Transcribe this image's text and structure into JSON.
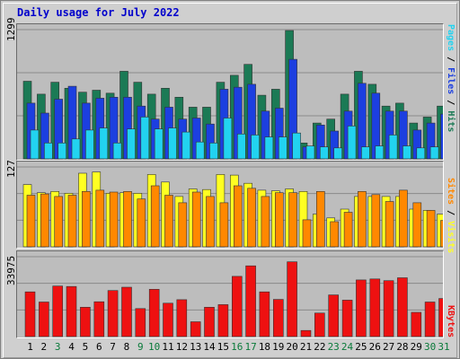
{
  "title": "Daily usage for July 2022",
  "colors": {
    "hits": "#1b7a55",
    "files": "#1c3fe0",
    "pages": "#22d3f0",
    "visits": "#ffff22",
    "sites": "#ff8800",
    "kbytes": "#ee1111",
    "weekend_label": "#0a7a3a",
    "weekday_label": "#000000"
  },
  "chart_data": [
    {
      "type": "bar",
      "panel": "requests",
      "ymax_label": "1299",
      "ylim": [
        0,
        1299
      ],
      "legend": [
        {
          "key": "pages",
          "text": "Pages"
        },
        {
          "key": "files",
          "text": "Files"
        },
        {
          "key": "hits",
          "text": "Hits"
        }
      ],
      "categories": [
        "1",
        "2",
        "3",
        "4",
        "5",
        "6",
        "7",
        "8",
        "9",
        "10",
        "11",
        "12",
        "13",
        "14",
        "15",
        "16",
        "17",
        "18",
        "19",
        "20",
        "21",
        "22",
        "23",
        "24",
        "25",
        "26",
        "27",
        "28",
        "29",
        "30",
        "31"
      ],
      "series": [
        {
          "name": "Hits",
          "key": "hits",
          "values": [
            780,
            650,
            770,
            710,
            670,
            690,
            660,
            880,
            770,
            650,
            710,
            620,
            520,
            520,
            770,
            840,
            950,
            640,
            700,
            1290,
            160,
            360,
            400,
            650,
            880,
            750,
            530,
            560,
            360,
            420,
            530
          ]
        },
        {
          "name": "Files",
          "key": "files",
          "values": [
            560,
            460,
            600,
            730,
            560,
            610,
            620,
            620,
            530,
            400,
            520,
            400,
            410,
            350,
            700,
            720,
            750,
            480,
            510,
            1000,
            120,
            340,
            280,
            480,
            760,
            660,
            480,
            480,
            290,
            360,
            450
          ]
        },
        {
          "name": "Pages",
          "key": "pages",
          "values": [
            290,
            160,
            160,
            200,
            290,
            310,
            160,
            300,
            420,
            300,
            310,
            270,
            170,
            160,
            410,
            250,
            240,
            220,
            220,
            260,
            130,
            120,
            110,
            330,
            120,
            130,
            240,
            130,
            110,
            120,
            130
          ]
        }
      ]
    },
    {
      "type": "bar",
      "panel": "visitors",
      "ymax_label": "127",
      "ylim": [
        0,
        127
      ],
      "legend": [
        {
          "key": "sites",
          "text": "Sites"
        },
        {
          "key": "visits",
          "text": "Visits"
        }
      ],
      "categories": [
        "1",
        "2",
        "3",
        "4",
        "5",
        "6",
        "7",
        "8",
        "9",
        "10",
        "11",
        "12",
        "13",
        "14",
        "15",
        "16",
        "17",
        "18",
        "19",
        "20",
        "21",
        "22",
        "23",
        "24",
        "25",
        "26",
        "27",
        "28",
        "29",
        "30",
        "31"
      ],
      "series": [
        {
          "name": "Visits",
          "key": "visits",
          "values": [
            99,
            86,
            88,
            85,
            117,
            119,
            85,
            86,
            85,
            115,
            103,
            80,
            92,
            91,
            115,
            114,
            101,
            90,
            89,
            92,
            88,
            52,
            46,
            60,
            80,
            80,
            80,
            80,
            60,
            58,
            52
          ]
        },
        {
          "name": "Sites",
          "key": "sites",
          "values": [
            82,
            84,
            80,
            82,
            88,
            90,
            87,
            88,
            76,
            97,
            82,
            70,
            87,
            80,
            70,
            97,
            93,
            80,
            86,
            86,
            43,
            88,
            40,
            55,
            88,
            83,
            72,
            90,
            70,
            58,
            42
          ]
        }
      ]
    },
    {
      "type": "bar",
      "panel": "kbytes",
      "ymax_label": "33975",
      "ylim": [
        0,
        33975
      ],
      "legend": [
        {
          "key": "kbytes",
          "text": "KBytes"
        }
      ],
      "categories": [
        "1",
        "2",
        "3",
        "4",
        "5",
        "6",
        "7",
        "8",
        "9",
        "10",
        "11",
        "12",
        "13",
        "14",
        "15",
        "16",
        "17",
        "18",
        "19",
        "20",
        "21",
        "22",
        "23",
        "24",
        "25",
        "26",
        "27",
        "28",
        "29",
        "30",
        "31"
      ],
      "series": [
        {
          "name": "KBytes",
          "key": "kbytes",
          "values": [
            19000,
            14700,
            21500,
            21300,
            12500,
            14800,
            19600,
            21000,
            11900,
            20100,
            14200,
            15700,
            6300,
            12500,
            13600,
            25600,
            30100,
            19000,
            15800,
            31800,
            2600,
            10000,
            17700,
            15500,
            24100,
            24500,
            23800,
            25000,
            10300,
            14700,
            16200
          ]
        }
      ]
    }
  ],
  "x_labels": [
    {
      "text": "1",
      "weekend": false
    },
    {
      "text": "2",
      "weekend": false
    },
    {
      "text": "3",
      "weekend": true
    },
    {
      "text": "4",
      "weekend": false
    },
    {
      "text": "5",
      "weekend": false
    },
    {
      "text": "6",
      "weekend": false
    },
    {
      "text": "7",
      "weekend": false
    },
    {
      "text": "8",
      "weekend": false
    },
    {
      "text": "9",
      "weekend": true
    },
    {
      "text": "10",
      "weekend": true
    },
    {
      "text": "11",
      "weekend": false
    },
    {
      "text": "12",
      "weekend": false
    },
    {
      "text": "13",
      "weekend": false
    },
    {
      "text": "14",
      "weekend": false
    },
    {
      "text": "15",
      "weekend": false
    },
    {
      "text": "16",
      "weekend": true
    },
    {
      "text": "17",
      "weekend": true
    },
    {
      "text": "18",
      "weekend": false
    },
    {
      "text": "19",
      "weekend": false
    },
    {
      "text": "20",
      "weekend": false
    },
    {
      "text": "21",
      "weekend": false
    },
    {
      "text": "22",
      "weekend": false
    },
    {
      "text": "23",
      "weekend": true
    },
    {
      "text": "24",
      "weekend": true
    },
    {
      "text": "25",
      "weekend": false
    },
    {
      "text": "26",
      "weekend": false
    },
    {
      "text": "27",
      "weekend": false
    },
    {
      "text": "28",
      "weekend": false
    },
    {
      "text": "29",
      "weekend": false
    },
    {
      "text": "30",
      "weekend": true
    },
    {
      "text": "31",
      "weekend": true
    }
  ]
}
